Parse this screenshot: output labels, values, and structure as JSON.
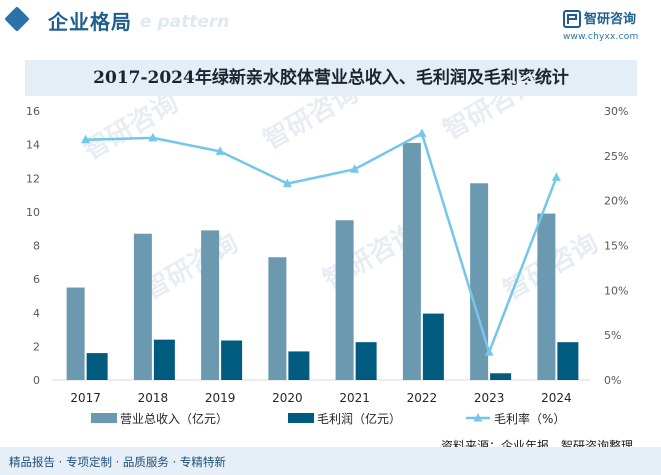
{
  "header": {
    "title": "企业格局",
    "watermark_text": "e pattern",
    "logo_name": "智研咨询",
    "logo_url": "www.chyxx.com"
  },
  "colors": {
    "revenue_bar": "#6b99b0",
    "profit_bar": "#005b7f",
    "margin_line": "#74c6ea",
    "title_band": "#e4eef6",
    "header_accent": "#1f5f8f"
  },
  "chart_data": {
    "type": "bar",
    "title": "2017-2024年绿新亲水胶体营业总收入、毛利润及毛利率统计",
    "categories": [
      "2017",
      "2018",
      "2019",
      "2020",
      "2021",
      "2022",
      "2023",
      "2024"
    ],
    "series": [
      {
        "name": "营业总收入（亿元）",
        "type": "bar",
        "axis": "left",
        "values": [
          5.5,
          8.7,
          8.9,
          7.3,
          9.5,
          14.1,
          11.7,
          9.9
        ]
      },
      {
        "name": "毛利润（亿元）",
        "type": "bar",
        "axis": "left",
        "values": [
          1.6,
          2.4,
          2.35,
          1.7,
          2.25,
          3.95,
          0.4,
          2.25
        ]
      },
      {
        "name": "毛利率（%）",
        "type": "line",
        "axis": "right",
        "values": [
          26.8,
          27.0,
          25.5,
          21.9,
          23.5,
          27.5,
          3.1,
          22.6
        ]
      }
    ],
    "y_left": {
      "min": 0,
      "max": 16,
      "ticks": [
        "0",
        "2",
        "4",
        "6",
        "8",
        "10",
        "12",
        "14",
        "16"
      ]
    },
    "y_right": {
      "min": 0,
      "max": 30,
      "ticks": [
        "0%",
        "5%",
        "10%",
        "15%",
        "20%",
        "25%",
        "30%"
      ]
    },
    "grid": false,
    "legend_position": "bottom"
  },
  "footer": {
    "left_text": "精品报告 · 专项定制 · 品质服务 · 专精特新",
    "source_text": "资料来源：企业年报，智研咨询整理"
  }
}
